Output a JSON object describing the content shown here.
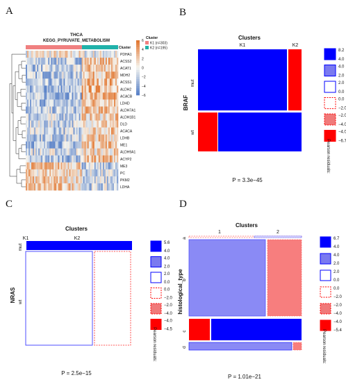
{
  "chart_data": [
    {
      "panel": "A",
      "type": "heatmap",
      "title": "THCA",
      "subtitle": "KEGG_PYRUVATE_METABOLISM",
      "annotation_title": "Cluster",
      "genes": [
        "PDHA1",
        "ACSS2",
        "ACAT1",
        "MDH2",
        "ACSS1",
        "ALDH2",
        "ACACB",
        "LDHD",
        "ALDH7A1",
        "ALDH1B1",
        "DLD",
        "ACACA",
        "LDHB",
        "ME1",
        "ALDH9A1",
        "ACYP2",
        "ME3",
        "PC",
        "PKM2",
        "LDHA"
      ],
      "groups": [
        {
          "label": "K1 (n=303)",
          "n": 303,
          "color": "#f08080"
        },
        {
          "label": "K2 (n=195)",
          "n": 195,
          "color": "#20b2aa"
        }
      ],
      "colorbar": {
        "ticks": [
          6,
          4,
          2,
          0,
          -2,
          -4,
          -6
        ],
        "high": "#b2182b",
        "mid": "#f7f7f7",
        "low": "#2166ac"
      }
    },
    {
      "panel": "B",
      "type": "mosaic",
      "title": "Clusters",
      "ylabel": "BRAF",
      "columns": [
        "K1",
        "K2"
      ],
      "rows": [
        "mut",
        "wt"
      ],
      "column_fraction": [
        0.9,
        0.1
      ],
      "row_fraction_by_column": [
        [
          0.78,
          0.22
        ],
        [
          0.99,
          0.01
        ]
      ],
      "cell_fill": [
        [
          "#0000ff",
          "#ff0000"
        ],
        [
          "#ff0000",
          "#0000ff"
        ]
      ],
      "legend_title": "Pearson residuals:",
      "legend_labels": [
        "8.2",
        "4.0",
        "2.0",
        "0.0",
        "−2.0",
        "−4.0",
        "−6.7"
      ],
      "pvalue": "P = 3.3e−45"
    },
    {
      "panel": "C",
      "type": "mosaic",
      "title": "Clusters",
      "ylabel": "NRAS",
      "columns": [
        "K1",
        "K2"
      ],
      "rows": [
        "mut",
        "wt"
      ],
      "column_fraction": [
        0.61,
        0.39
      ],
      "row_fraction_by_column": [
        [
          0.065,
          0.935
        ],
        [
          0.065,
          0.935
        ]
      ],
      "legend_title": "Pearson residuals:",
      "legend_labels": [
        "5.6",
        "4.0",
        "2.0",
        "0.0",
        "−2.0",
        "−4.0",
        "−4.5"
      ],
      "pvalue": "P = 2.5e−15"
    },
    {
      "panel": "D",
      "type": "mosaic",
      "title": "Clusters",
      "ylabel": "histological_type",
      "columns": [
        "1",
        "2"
      ],
      "rows": [
        "a",
        "b",
        "c",
        "d"
      ],
      "column_fraction": [
        0.7,
        0.3
      ],
      "row_fraction": [
        0.015,
        0.67,
        0.2,
        0.075
      ],
      "legend_title": "Pearson residuals:",
      "legend_labels": [
        "6.7",
        "4.0",
        "2.0",
        "0.0",
        "−2.0",
        "−4.0",
        "−5.4"
      ],
      "pvalue": "P = 1.01e−21"
    }
  ],
  "panel_labels": [
    "A",
    "B",
    "C",
    "D"
  ],
  "legend_colors": {
    "strong_pos": "#0000ff",
    "mid_pos": "#7a7af0",
    "neutral": "#ffffff",
    "mid_neg": "#f07a7a",
    "strong_neg": "#ff0000",
    "pos_border": "#0000ff",
    "neg_border": "#ff0000"
  }
}
